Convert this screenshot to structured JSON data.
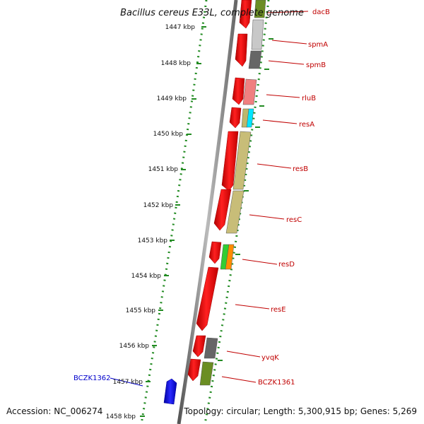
{
  "title": "Bacillus cereus E33L, complete genome",
  "footer": {
    "accession": "Accession: NC_006274",
    "topology": "Topology: circular; Length: 5,300,915 bp; Genes: 5,269"
  },
  "kbp_labels": [
    "1447 kbp",
    "1448 kbp",
    "1449 kbp",
    "1450 kbp",
    "1451 kbp",
    "1452 kbp",
    "1453 kbp",
    "1454 kbp",
    "1455 kbp",
    "1456 kbp",
    "1457 kbp",
    "1458 kbp"
  ],
  "gene_labels_right": [
    "dacB",
    "spmA",
    "spmB",
    "rluB",
    "resA",
    "resB",
    "resC",
    "resD",
    "resE",
    "yvqK",
    "BCZK1361"
  ],
  "gene_labels_left": [
    "BCZK1362"
  ],
  "colors": {
    "axis_dots": "#228B22",
    "backbone": "#808080",
    "gene_red": "#ff0000",
    "label_red": "#c00000",
    "label_blue": "#0000cc",
    "gene_blue": "#0000ff"
  }
}
